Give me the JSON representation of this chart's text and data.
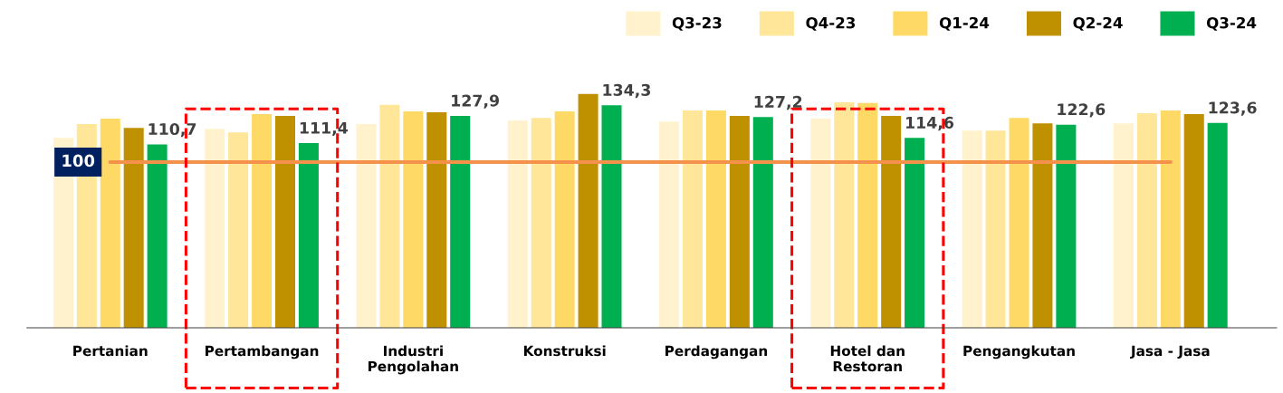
{
  "chart_data": {
    "type": "bar",
    "categories": [
      "Pertanian",
      "Pertambangan",
      "Industri\nPengolahan",
      "Konstruksi",
      "Perdagangan",
      "Hotel dan\nRestoran",
      "Pengangkutan",
      "Jasa - Jasa"
    ],
    "series": [
      {
        "name": "Q3-23",
        "color": "#fff2cc",
        "values": [
          114.6,
          120.1,
          122.9,
          125.1,
          124.5,
          126.2,
          119.0,
          123.4
        ]
      },
      {
        "name": "Q4-23",
        "color": "#ffe699",
        "values": [
          122.9,
          117.9,
          134.5,
          126.7,
          131.2,
          136.1,
          119.0,
          129.5
        ]
      },
      {
        "name": "Q1-24",
        "color": "#ffd966",
        "values": [
          126.2,
          128.9,
          130.6,
          130.6,
          131.2,
          135.6,
          126.7,
          131.2
        ]
      },
      {
        "name": "Q2-24",
        "color": "#bf9000",
        "values": [
          120.6,
          127.8,
          130.0,
          141.1,
          127.8,
          127.8,
          123.4,
          128.9
        ]
      },
      {
        "name": "Q3-24",
        "color": "#00b050",
        "values": [
          110.7,
          111.4,
          127.9,
          134.3,
          127.2,
          114.6,
          122.6,
          123.6
        ],
        "value_labels": [
          "110,7",
          "111,4",
          "127,9",
          "134,3",
          "127,2",
          "114,6",
          "122,6",
          "123,6"
        ]
      }
    ],
    "tick_labels": "x",
    "grid": false,
    "legend": "top right",
    "ref_lines": [
      {
        "axis": "y",
        "value": 100,
        "label": "100",
        "color": "#f4914a"
      }
    ]
  }
}
